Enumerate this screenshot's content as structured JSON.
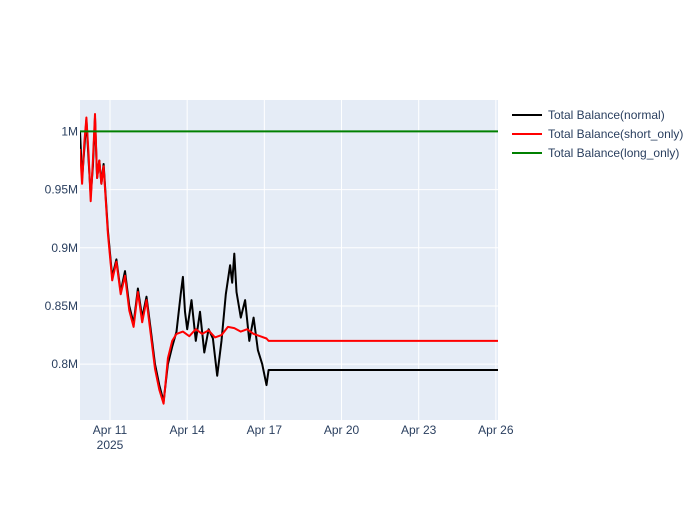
{
  "chart_data": {
    "type": "line",
    "title": "",
    "xlabel": "",
    "ylabel": "",
    "x_ticks": [
      {
        "date": "2025-04-11",
        "label": "Apr 11",
        "sublabel": "2025"
      },
      {
        "date": "2025-04-14",
        "label": "Apr 14",
        "sublabel": ""
      },
      {
        "date": "2025-04-17",
        "label": "Apr 17",
        "sublabel": ""
      },
      {
        "date": "2025-04-20",
        "label": "Apr 20",
        "sublabel": ""
      },
      {
        "date": "2025-04-23",
        "label": "Apr 23",
        "sublabel": ""
      },
      {
        "date": "2025-04-26",
        "label": "Apr 26",
        "sublabel": ""
      }
    ],
    "y_ticks": [
      {
        "value": 800000,
        "label": "0.8M"
      },
      {
        "value": 850000,
        "label": "0.85M"
      },
      {
        "value": 900000,
        "label": "0.9M"
      },
      {
        "value": 950000,
        "label": "0.95M"
      },
      {
        "value": 1000000,
        "label": "1M"
      }
    ],
    "xlim": [
      "2025-04-09 20:00",
      "2025-04-26 02:00"
    ],
    "ylim": [
      752000,
      1027000
    ],
    "grid": true,
    "legend_position": "top-right",
    "plot_background": "#e5ecf6",
    "series": [
      {
        "name": "Total Balance(normal)",
        "color": "#000000",
        "points": [
          [
            "2025-04-09 20:00",
            1000000
          ],
          [
            "2025-04-09 22:00",
            960000
          ],
          [
            "2025-04-10 00:00",
            985000
          ],
          [
            "2025-04-10 02:00",
            1010000
          ],
          [
            "2025-04-10 04:00",
            975000
          ],
          [
            "2025-04-10 06:00",
            945000
          ],
          [
            "2025-04-10 08:00",
            970000
          ],
          [
            "2025-04-10 10:00",
            1012000
          ],
          [
            "2025-04-10 12:00",
            960000
          ],
          [
            "2025-04-10 14:00",
            975000
          ],
          [
            "2025-04-10 16:00",
            955000
          ],
          [
            "2025-04-10 18:00",
            972000
          ],
          [
            "2025-04-10 22:00",
            915000
          ],
          [
            "2025-04-11 02:00",
            875000
          ],
          [
            "2025-04-11 06:00",
            890000
          ],
          [
            "2025-04-11 10:00",
            862000
          ],
          [
            "2025-04-11 14:00",
            880000
          ],
          [
            "2025-04-11 18:00",
            850000
          ],
          [
            "2025-04-11 22:00",
            835000
          ],
          [
            "2025-04-12 02:00",
            865000
          ],
          [
            "2025-04-12 06:00",
            840000
          ],
          [
            "2025-04-12 10:00",
            858000
          ],
          [
            "2025-04-12 14:00",
            830000
          ],
          [
            "2025-04-12 18:00",
            800000
          ],
          [
            "2025-04-12 22:00",
            782000
          ],
          [
            "2025-04-13 02:00",
            768000
          ],
          [
            "2025-04-13 06:00",
            800000
          ],
          [
            "2025-04-13 10:00",
            815000
          ],
          [
            "2025-04-13 14:00",
            828000
          ],
          [
            "2025-04-13 18:00",
            860000
          ],
          [
            "2025-04-13 20:00",
            875000
          ],
          [
            "2025-04-13 22:00",
            845000
          ],
          [
            "2025-04-14 00:00",
            830000
          ],
          [
            "2025-04-14 04:00",
            855000
          ],
          [
            "2025-04-14 08:00",
            820000
          ],
          [
            "2025-04-14 12:00",
            845000
          ],
          [
            "2025-04-14 16:00",
            810000
          ],
          [
            "2025-04-14 20:00",
            830000
          ],
          [
            "2025-04-15 00:00",
            822000
          ],
          [
            "2025-04-15 04:00",
            790000
          ],
          [
            "2025-04-15 08:00",
            820000
          ],
          [
            "2025-04-15 12:00",
            860000
          ],
          [
            "2025-04-15 16:00",
            885000
          ],
          [
            "2025-04-15 18:00",
            870000
          ],
          [
            "2025-04-15 20:00",
            895000
          ],
          [
            "2025-04-15 22:00",
            862000
          ],
          [
            "2025-04-16 02:00",
            840000
          ],
          [
            "2025-04-16 06:00",
            855000
          ],
          [
            "2025-04-16 10:00",
            820000
          ],
          [
            "2025-04-16 14:00",
            840000
          ],
          [
            "2025-04-16 18:00",
            812000
          ],
          [
            "2025-04-16 22:00",
            800000
          ],
          [
            "2025-04-17 02:00",
            782000
          ],
          [
            "2025-04-17 04:00",
            795000
          ],
          [
            "2025-04-26 02:00",
            795000
          ]
        ]
      },
      {
        "name": "Total Balance(short_only)",
        "color": "#ff0000",
        "points": [
          [
            "2025-04-09 20:00",
            985000
          ],
          [
            "2025-04-09 22:00",
            955000
          ],
          [
            "2025-04-10 00:00",
            990000
          ],
          [
            "2025-04-10 02:00",
            1012000
          ],
          [
            "2025-04-10 04:00",
            980000
          ],
          [
            "2025-04-10 06:00",
            940000
          ],
          [
            "2025-04-10 08:00",
            975000
          ],
          [
            "2025-04-10 10:00",
            1015000
          ],
          [
            "2025-04-10 12:00",
            960000
          ],
          [
            "2025-04-10 14:00",
            975000
          ],
          [
            "2025-04-10 16:00",
            955000
          ],
          [
            "2025-04-10 18:00",
            970000
          ],
          [
            "2025-04-10 22:00",
            912000
          ],
          [
            "2025-04-11 02:00",
            872000
          ],
          [
            "2025-04-11 06:00",
            888000
          ],
          [
            "2025-04-11 10:00",
            860000
          ],
          [
            "2025-04-11 14:00",
            876000
          ],
          [
            "2025-04-11 18:00",
            846000
          ],
          [
            "2025-04-11 22:00",
            832000
          ],
          [
            "2025-04-12 02:00",
            862000
          ],
          [
            "2025-04-12 06:00",
            836000
          ],
          [
            "2025-04-12 10:00",
            855000
          ],
          [
            "2025-04-12 14:00",
            826000
          ],
          [
            "2025-04-12 18:00",
            796000
          ],
          [
            "2025-04-12 22:00",
            778000
          ],
          [
            "2025-04-13 02:00",
            766000
          ],
          [
            "2025-04-13 06:00",
            805000
          ],
          [
            "2025-04-13 10:00",
            820000
          ],
          [
            "2025-04-13 14:00",
            826000
          ],
          [
            "2025-04-13 20:00",
            828000
          ],
          [
            "2025-04-14 02:00",
            824000
          ],
          [
            "2025-04-14 08:00",
            830000
          ],
          [
            "2025-04-14 14:00",
            826000
          ],
          [
            "2025-04-14 20:00",
            829000
          ],
          [
            "2025-04-15 02:00",
            823000
          ],
          [
            "2025-04-15 08:00",
            825000
          ],
          [
            "2025-04-15 14:00",
            832000
          ],
          [
            "2025-04-15 20:00",
            831000
          ],
          [
            "2025-04-16 02:00",
            828000
          ],
          [
            "2025-04-16 08:00",
            830000
          ],
          [
            "2025-04-16 14:00",
            826000
          ],
          [
            "2025-04-16 20:00",
            824000
          ],
          [
            "2025-04-17 02:00",
            822000
          ],
          [
            "2025-04-17 04:00",
            820000
          ],
          [
            "2025-04-26 02:00",
            820000
          ]
        ]
      },
      {
        "name": "Total Balance(long_only)",
        "color": "#008000",
        "points": [
          [
            "2025-04-09 20:00",
            1000000
          ],
          [
            "2025-04-26 02:00",
            1000000
          ]
        ]
      }
    ]
  }
}
